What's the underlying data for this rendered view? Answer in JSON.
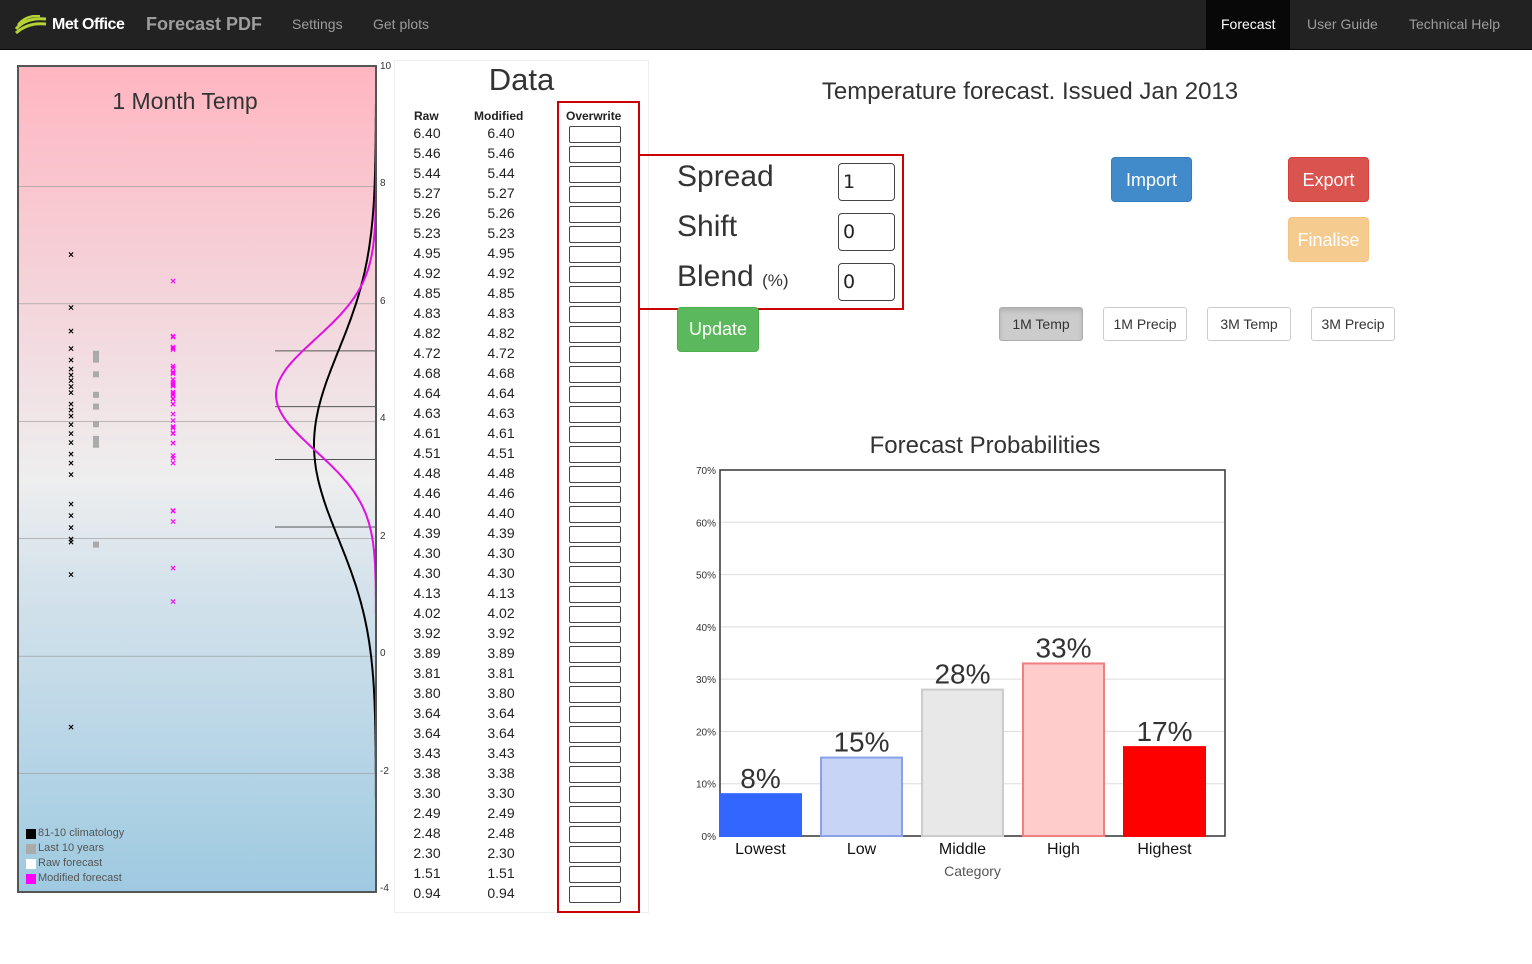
{
  "navbar": {
    "logo_text": "Met Office",
    "app_name": "Forecast PDF",
    "links": [
      "Settings",
      "Get plots"
    ],
    "right_links": [
      {
        "label": "Forecast",
        "active": true
      },
      {
        "label": "User Guide",
        "active": false
      },
      {
        "label": "Technical Help",
        "active": false
      }
    ]
  },
  "temp_plot": {
    "title": "1 Month Temp",
    "y_ticks": [
      "10",
      "8",
      "6",
      "4",
      "2",
      "0",
      "-2",
      "-4"
    ],
    "legend": [
      {
        "label": "81-10 climatology",
        "color": "#000000"
      },
      {
        "label": "Last 10 years",
        "color": "#aaaaaa"
      },
      {
        "label": "Raw forecast",
        "color": "#ffffff"
      },
      {
        "label": "Modified forecast",
        "color": "#ff00ff"
      }
    ],
    "colors": {
      "climatology": "#000000",
      "last10": "#aaaaaa",
      "modified": "#ff00ff"
    }
  },
  "data_table": {
    "title": "Data",
    "headers": {
      "raw": "Raw",
      "modified": "Modified",
      "overwrite": "Overwrite"
    },
    "rows": [
      [
        "6.40",
        "6.40"
      ],
      [
        "5.46",
        "5.46"
      ],
      [
        "5.44",
        "5.44"
      ],
      [
        "5.27",
        "5.27"
      ],
      [
        "5.26",
        "5.26"
      ],
      [
        "5.23",
        "5.23"
      ],
      [
        "4.95",
        "4.95"
      ],
      [
        "4.92",
        "4.92"
      ],
      [
        "4.85",
        "4.85"
      ],
      [
        "4.83",
        "4.83"
      ],
      [
        "4.82",
        "4.82"
      ],
      [
        "4.72",
        "4.72"
      ],
      [
        "4.68",
        "4.68"
      ],
      [
        "4.64",
        "4.64"
      ],
      [
        "4.63",
        "4.63"
      ],
      [
        "4.61",
        "4.61"
      ],
      [
        "4.51",
        "4.51"
      ],
      [
        "4.48",
        "4.48"
      ],
      [
        "4.46",
        "4.46"
      ],
      [
        "4.40",
        "4.40"
      ],
      [
        "4.39",
        "4.39"
      ],
      [
        "4.30",
        "4.30"
      ],
      [
        "4.30",
        "4.30"
      ],
      [
        "4.13",
        "4.13"
      ],
      [
        "4.02",
        "4.02"
      ],
      [
        "3.92",
        "3.92"
      ],
      [
        "3.89",
        "3.89"
      ],
      [
        "3.81",
        "3.81"
      ],
      [
        "3.80",
        "3.80"
      ],
      [
        "3.64",
        "3.64"
      ],
      [
        "3.64",
        "3.64"
      ],
      [
        "3.43",
        "3.43"
      ],
      [
        "3.38",
        "3.38"
      ],
      [
        "3.30",
        "3.30"
      ],
      [
        "2.49",
        "2.49"
      ],
      [
        "2.48",
        "2.48"
      ],
      [
        "2.30",
        "2.30"
      ],
      [
        "1.51",
        "1.51"
      ],
      [
        "0.94",
        "0.94"
      ]
    ]
  },
  "controls": {
    "spread_label": "Spread",
    "spread_value": "1",
    "shift_label": "Shift",
    "shift_value": "0",
    "blend_label": "Blend",
    "blend_unit": "(%)",
    "blend_value": "0",
    "update_label": "Update"
  },
  "forecast": {
    "title": "Temperature forecast. Issued Jan 2013",
    "import_label": "Import",
    "export_label": "Export",
    "finalise_label": "Finalise",
    "variable_tabs": [
      {
        "label": "1M Temp",
        "active": true
      },
      {
        "label": "1M Precip",
        "active": false
      },
      {
        "label": "3M Temp",
        "active": false
      },
      {
        "label": "3M Precip",
        "active": false
      }
    ]
  },
  "chart_data": {
    "type": "bar",
    "title": "Forecast Probabilities",
    "xlabel": "Category",
    "ylabel": "",
    "categories": [
      "Lowest",
      "Low",
      "Middle",
      "High",
      "Highest"
    ],
    "values": [
      8,
      15,
      28,
      33,
      17
    ],
    "value_labels": [
      "8%",
      "15%",
      "28%",
      "33%",
      "17%"
    ],
    "ylim": [
      0,
      70
    ],
    "yticks": [
      "0%",
      "10%",
      "20%",
      "30%",
      "40%",
      "50%",
      "60%",
      "70%"
    ],
    "grid": true,
    "bar_colors": [
      {
        "fill": "#3366ff",
        "stroke": "#3366ff"
      },
      {
        "fill": "#c8d4f5",
        "stroke": "#8aa0e8"
      },
      {
        "fill": "#e8e8e8",
        "stroke": "#cccccc"
      },
      {
        "fill": "#ffcccc",
        "stroke": "#f08080"
      },
      {
        "fill": "#ff0000",
        "stroke": "#ff0000"
      }
    ]
  }
}
